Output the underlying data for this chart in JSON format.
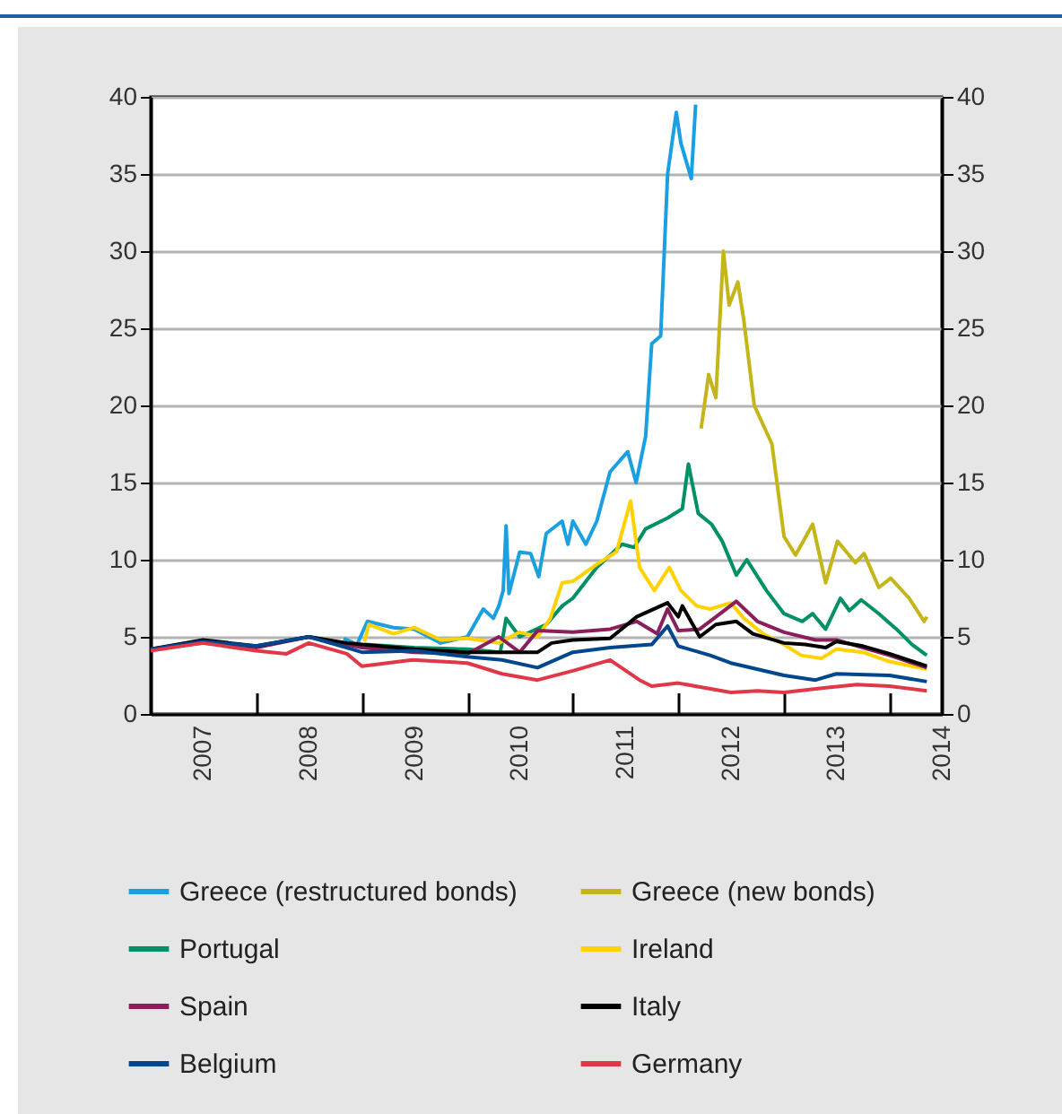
{
  "chart_data": {
    "type": "line",
    "xlim": [
      "2007-01-01",
      "2014-07-01"
    ],
    "xticks": [
      {
        "value": "2007-07-01",
        "label": "2007"
      },
      {
        "value": "2008-01-01",
        "label": null
      },
      {
        "value": "2008-07-01",
        "label": "2008"
      },
      {
        "value": "2009-01-01",
        "label": null
      },
      {
        "value": "2009-07-01",
        "label": "2009"
      },
      {
        "value": "2010-01-01",
        "label": null
      },
      {
        "value": "2010-07-01",
        "label": "2010"
      },
      {
        "value": "2011-01-01",
        "label": null
      },
      {
        "value": "2011-07-01",
        "label": "2011"
      },
      {
        "value": "2012-01-01",
        "label": null
      },
      {
        "value": "2012-07-01",
        "label": "2012"
      },
      {
        "value": "2013-01-01",
        "label": null
      },
      {
        "value": "2013-07-01",
        "label": "2013"
      },
      {
        "value": "2014-01-01",
        "label": null
      },
      {
        "value": "2014-07-01",
        "label": "2014"
      }
    ],
    "ylim": [
      0,
      40
    ],
    "yticks": [
      0,
      5,
      10,
      15,
      20,
      25,
      30,
      35,
      40
    ],
    "y2lim": [
      0,
      40
    ],
    "y2ticks": [
      0,
      5,
      10,
      15,
      20,
      25,
      30,
      35,
      40
    ],
    "grid": "y",
    "legend": "bottom",
    "series": [
      {
        "name": "Greece (restructured bonds)",
        "color": "#1aa0e0",
        "x": [
          "2008-10-30",
          "2008-12-15",
          "2009-01-20",
          "2009-04-20",
          "2009-07-01",
          "2009-10-01",
          "2010-01-01",
          "2010-02-25",
          "2010-04-01",
          "2010-04-20",
          "2010-05-05",
          "2010-05-15",
          "2010-05-25",
          "2010-07-01",
          "2010-08-08",
          "2010-09-05",
          "2010-10-01",
          "2010-11-25",
          "2010-12-15",
          "2011-01-01",
          "2011-02-15",
          "2011-03-25",
          "2011-05-10",
          "2011-07-10",
          "2011-08-08",
          "2011-09-10",
          "2011-10-01",
          "2011-11-01",
          "2011-11-25",
          "2011-12-25",
          "2012-01-10",
          "2012-02-15",
          "2012-03-01"
        ],
        "values": [
          4.9,
          4.5,
          6.0,
          5.6,
          5.5,
          4.6,
          5.0,
          6.8,
          6.2,
          7.0,
          8.0,
          12.2,
          7.8,
          10.5,
          10.4,
          8.9,
          11.7,
          12.5,
          11.0,
          12.5,
          11.0,
          12.5,
          15.7,
          17.0,
          15.0,
          18.0,
          24.0,
          24.5,
          35.0,
          39.0,
          37.0,
          34.7,
          39.5
        ]
      },
      {
        "name": "Greece (new bonds)",
        "color": "#c4b518",
        "x": [
          "2012-03-20",
          "2012-04-15",
          "2012-05-10",
          "2012-06-05",
          "2012-06-25",
          "2012-07-25",
          "2012-08-15",
          "2012-09-20",
          "2012-11-20",
          "2013-01-01",
          "2013-02-10",
          "2013-04-10",
          "2013-05-25",
          "2013-07-05",
          "2013-09-05",
          "2013-10-05",
          "2013-11-25",
          "2014-01-05",
          "2014-03-10",
          "2014-05-01",
          "2014-05-10"
        ],
        "values": [
          18.5,
          22.0,
          20.5,
          30.0,
          26.5,
          28.0,
          25.5,
          20.0,
          17.5,
          11.5,
          10.3,
          12.3,
          8.5,
          11.2,
          9.8,
          10.4,
          8.2,
          8.8,
          7.5,
          6.0,
          6.3
        ]
      },
      {
        "name": "Portugal",
        "color": "#009068",
        "x": [
          "2009-01-10",
          "2009-07-01",
          "2010-01-01",
          "2010-04-25",
          "2010-05-15",
          "2010-07-01",
          "2010-10-01",
          "2010-11-25",
          "2011-01-01",
          "2011-03-25",
          "2011-06-20",
          "2011-08-01",
          "2011-09-10",
          "2011-11-25",
          "2012-01-15",
          "2012-02-05",
          "2012-03-10",
          "2012-04-25",
          "2012-06-01",
          "2012-07-20",
          "2012-08-25",
          "2012-11-01",
          "2013-01-01",
          "2013-03-05",
          "2013-04-10",
          "2013-05-25",
          "2013-07-15",
          "2013-08-15",
          "2013-09-25",
          "2013-11-25",
          "2014-01-25",
          "2014-03-20",
          "2014-05-10"
        ],
        "values": [
          4.5,
          4.3,
          4.2,
          4.0,
          6.2,
          5.0,
          5.8,
          7.0,
          7.5,
          9.5,
          11.0,
          10.8,
          12.0,
          12.7,
          13.3,
          16.2,
          13.0,
          12.3,
          11.2,
          9.0,
          10.0,
          8.0,
          6.5,
          6.0,
          6.5,
          5.5,
          7.5,
          6.7,
          7.4,
          6.5,
          5.5,
          4.5,
          3.8
        ]
      },
      {
        "name": "Ireland",
        "color": "#ffd200",
        "x": [
          "2009-01-10",
          "2009-01-25",
          "2009-04-20",
          "2009-07-01",
          "2009-10-01",
          "2010-01-01",
          "2010-04-20",
          "2010-07-01",
          "2010-09-01",
          "2010-10-15",
          "2010-11-25",
          "2011-01-01",
          "2011-03-25",
          "2011-06-01",
          "2011-07-20",
          "2011-08-20",
          "2011-10-10",
          "2011-12-01",
          "2012-01-10",
          "2012-03-05",
          "2012-04-20",
          "2012-07-01",
          "2012-08-15",
          "2012-10-20",
          "2013-01-01",
          "2013-03-01",
          "2013-05-10",
          "2013-07-01",
          "2013-10-01",
          "2014-01-01",
          "2014-05-10"
        ],
        "values": [
          4.7,
          5.8,
          5.2,
          5.6,
          4.8,
          4.9,
          4.6,
          5.3,
          5.0,
          6.2,
          8.5,
          8.6,
          9.7,
          10.5,
          13.8,
          9.5,
          8.0,
          9.5,
          8.0,
          7.0,
          6.8,
          7.2,
          6.2,
          5.2,
          4.5,
          3.8,
          3.6,
          4.2,
          4.0,
          3.4,
          2.9
        ]
      },
      {
        "name": "Spain",
        "color": "#8b1f5c",
        "x": [
          "2007-01-01",
          "2007-07-01",
          "2008-01-01",
          "2008-07-01",
          "2009-01-01",
          "2009-07-01",
          "2010-01-01",
          "2010-04-20",
          "2010-07-01",
          "2010-09-01",
          "2011-01-01",
          "2011-05-10",
          "2011-08-10",
          "2011-10-20",
          "2011-11-25",
          "2012-01-01",
          "2012-03-15",
          "2012-05-25",
          "2012-07-20",
          "2012-10-01",
          "2013-01-01",
          "2013-04-20",
          "2013-07-01",
          "2013-10-01",
          "2014-01-01",
          "2014-05-10"
        ],
        "values": [
          4.2,
          4.6,
          4.3,
          5.0,
          4.3,
          4.0,
          3.9,
          5.0,
          4.0,
          5.4,
          5.3,
          5.5,
          6.0,
          5.2,
          6.8,
          5.4,
          5.5,
          6.5,
          7.3,
          6.0,
          5.3,
          4.8,
          4.8,
          4.3,
          3.8,
          3.0
        ]
      },
      {
        "name": "Italy",
        "color": "#000000",
        "x": [
          "2007-01-01",
          "2007-07-01",
          "2008-01-01",
          "2008-07-01",
          "2008-11-10",
          "2009-01-01",
          "2009-07-01",
          "2010-01-01",
          "2010-05-01",
          "2010-09-01",
          "2010-10-20",
          "2011-01-01",
          "2011-05-10",
          "2011-08-10",
          "2011-11-25",
          "2012-01-01",
          "2012-01-15",
          "2012-03-15",
          "2012-05-10",
          "2012-07-20",
          "2012-09-15",
          "2013-01-01",
          "2013-03-15",
          "2013-05-25",
          "2013-07-01",
          "2013-10-01",
          "2014-01-01",
          "2014-05-10"
        ],
        "values": [
          4.2,
          4.8,
          4.4,
          5.0,
          4.6,
          4.5,
          4.2,
          4.0,
          4.0,
          4.0,
          4.6,
          4.8,
          4.9,
          6.3,
          7.2,
          6.3,
          7.0,
          5.0,
          5.8,
          6.0,
          5.2,
          4.6,
          4.5,
          4.3,
          4.7,
          4.4,
          3.9,
          3.1
        ]
      },
      {
        "name": "Belgium",
        "color": "#00468c",
        "x": [
          "2007-01-01",
          "2007-07-01",
          "2008-01-01",
          "2008-07-01",
          "2008-11-10",
          "2009-01-01",
          "2009-07-01",
          "2010-01-01",
          "2010-05-01",
          "2010-09-01",
          "2011-01-01",
          "2011-05-10",
          "2011-10-01",
          "2011-11-25",
          "2012-01-01",
          "2012-04-20",
          "2012-07-01",
          "2013-01-01",
          "2013-04-20",
          "2013-07-01",
          "2014-01-01",
          "2014-05-10"
        ],
        "values": [
          4.2,
          4.7,
          4.4,
          5.0,
          4.3,
          4.0,
          4.1,
          3.7,
          3.5,
          3.0,
          4.0,
          4.3,
          4.5,
          5.7,
          4.4,
          3.8,
          3.3,
          2.5,
          2.2,
          2.6,
          2.5,
          2.1
        ]
      },
      {
        "name": "Germany",
        "color": "#e03848",
        "x": [
          "2007-01-01",
          "2007-07-01",
          "2008-01-01",
          "2008-04-15",
          "2008-07-01",
          "2008-11-10",
          "2009-01-01",
          "2009-06-25",
          "2010-01-01",
          "2010-05-01",
          "2010-09-01",
          "2011-01-01",
          "2011-05-10",
          "2011-08-20",
          "2011-10-01",
          "2012-01-01",
          "2012-07-01",
          "2012-10-01",
          "2013-01-01",
          "2013-05-25",
          "2013-09-10",
          "2014-01-01",
          "2014-05-10"
        ],
        "values": [
          4.1,
          4.6,
          4.1,
          3.9,
          4.6,
          3.9,
          3.1,
          3.5,
          3.3,
          2.6,
          2.2,
          2.8,
          3.5,
          2.2,
          1.8,
          2.0,
          1.4,
          1.5,
          1.4,
          1.7,
          1.9,
          1.8,
          1.5
        ]
      }
    ]
  }
}
